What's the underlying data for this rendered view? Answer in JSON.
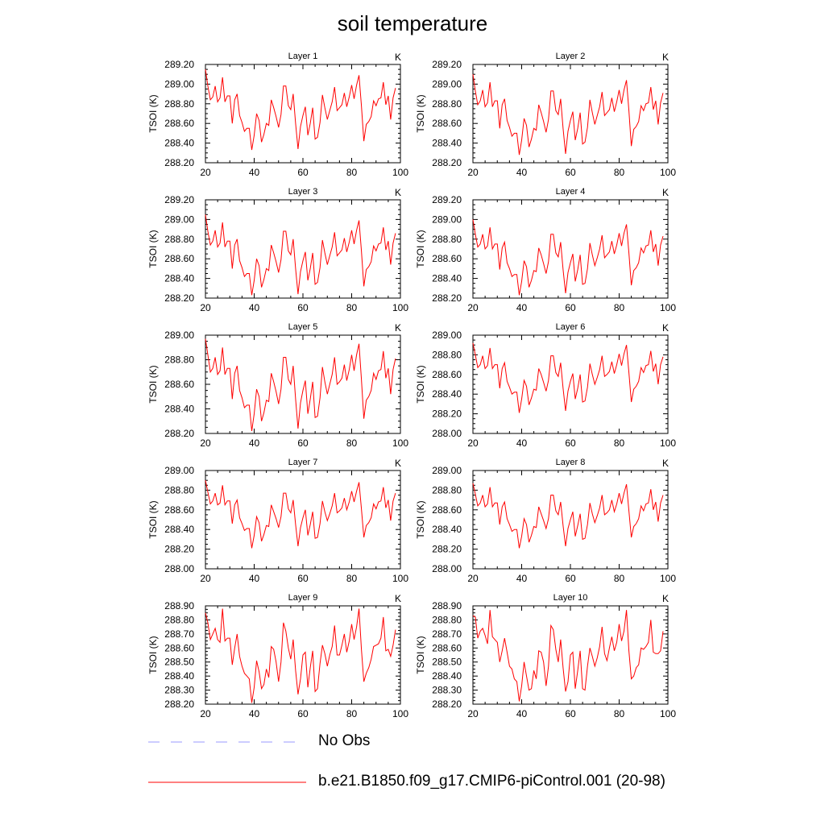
{
  "title": "soil temperature",
  "legend": [
    {
      "label": "No Obs",
      "color": "#9999ff",
      "dash": true
    },
    {
      "label": "b.e21.B1850.f09_g17.CMIP6-piControl.001 (20-98)",
      "color": "#ff0000",
      "dash": false
    }
  ],
  "chart_data": [
    {
      "type": "line",
      "panel_title": "Layer 1",
      "unit_label": "K",
      "ylabel": "TSOI  (K)",
      "xlim": [
        20,
        100
      ],
      "ylim": [
        288.2,
        289.2
      ],
      "yticks": [
        "289.20",
        "289.00",
        "288.80",
        "288.60",
        "288.40",
        "288.20"
      ],
      "xticks": [
        "20",
        "40",
        "60",
        "80",
        "100"
      ],
      "x_start": 20,
      "color": "#ff0000",
      "values": [
        289.15,
        288.98,
        288.84,
        288.87,
        288.98,
        288.82,
        288.86,
        289.07,
        288.82,
        288.88,
        288.88,
        288.6,
        288.84,
        288.9,
        288.68,
        288.61,
        288.52,
        288.55,
        288.55,
        288.33,
        288.48,
        288.7,
        288.63,
        288.41,
        288.49,
        288.6,
        288.58,
        288.84,
        288.76,
        288.67,
        288.56,
        288.69,
        288.98,
        288.98,
        288.78,
        288.74,
        288.9,
        288.6,
        288.34,
        288.57,
        288.68,
        288.77,
        288.48,
        288.6,
        288.76,
        288.44,
        288.46,
        288.61,
        288.89,
        288.76,
        288.64,
        288.73,
        288.82,
        288.97,
        288.73,
        288.76,
        288.79,
        288.91,
        288.77,
        288.87,
        288.99,
        288.85,
        288.99,
        289.09,
        288.78,
        288.42,
        288.59,
        288.62,
        288.67,
        288.83,
        288.78,
        288.85,
        288.86,
        289.02,
        288.79,
        288.88,
        288.64,
        288.86,
        288.96
      ]
    },
    {
      "type": "line",
      "panel_title": "Layer 2",
      "unit_label": "K",
      "ylabel": "TSOI  (K)",
      "xlim": [
        20,
        100
      ],
      "ylim": [
        288.2,
        289.2
      ],
      "yticks": [
        "289.20",
        "289.00",
        "288.80",
        "288.60",
        "288.40",
        "288.20"
      ],
      "xticks": [
        "20",
        "40",
        "60",
        "80",
        "100"
      ],
      "x_start": 20,
      "color": "#ff0000",
      "values": [
        289.1,
        288.93,
        288.79,
        288.83,
        288.94,
        288.77,
        288.81,
        289.02,
        288.77,
        288.83,
        288.83,
        288.55,
        288.79,
        288.85,
        288.63,
        288.56,
        288.47,
        288.5,
        288.5,
        288.28,
        288.43,
        288.65,
        288.58,
        288.36,
        288.44,
        288.55,
        288.53,
        288.79,
        288.71,
        288.62,
        288.51,
        288.64,
        288.93,
        288.93,
        288.73,
        288.69,
        288.85,
        288.55,
        288.29,
        288.52,
        288.63,
        288.72,
        288.43,
        288.55,
        288.71,
        288.39,
        288.41,
        288.56,
        288.84,
        288.71,
        288.59,
        288.68,
        288.77,
        288.92,
        288.68,
        288.71,
        288.74,
        288.86,
        288.72,
        288.82,
        288.94,
        288.8,
        288.94,
        289.04,
        288.73,
        288.37,
        288.54,
        288.57,
        288.62,
        288.78,
        288.73,
        288.8,
        288.81,
        288.97,
        288.74,
        288.83,
        288.59,
        288.81,
        288.91
      ]
    },
    {
      "type": "line",
      "panel_title": "Layer 3",
      "unit_label": "K",
      "ylabel": "TSOI  (K)",
      "xlim": [
        20,
        100
      ],
      "ylim": [
        288.2,
        289.2
      ],
      "yticks": [
        "289.20",
        "289.00",
        "288.80",
        "288.60",
        "288.40",
        "288.20"
      ],
      "xticks": [
        "20",
        "40",
        "60",
        "80",
        "100"
      ],
      "x_start": 20,
      "color": "#ff0000",
      "values": [
        289.05,
        288.88,
        288.74,
        288.78,
        288.89,
        288.72,
        288.76,
        288.97,
        288.72,
        288.78,
        288.78,
        288.5,
        288.74,
        288.8,
        288.58,
        288.51,
        288.42,
        288.45,
        288.45,
        288.23,
        288.38,
        288.6,
        288.53,
        288.31,
        288.39,
        288.5,
        288.48,
        288.74,
        288.66,
        288.57,
        288.46,
        288.59,
        288.88,
        288.88,
        288.68,
        288.64,
        288.8,
        288.5,
        288.24,
        288.47,
        288.58,
        288.67,
        288.38,
        288.5,
        288.66,
        288.34,
        288.36,
        288.51,
        288.79,
        288.66,
        288.54,
        288.63,
        288.72,
        288.87,
        288.63,
        288.66,
        288.69,
        288.81,
        288.67,
        288.77,
        288.89,
        288.75,
        288.89,
        288.99,
        288.68,
        288.32,
        288.49,
        288.52,
        288.57,
        288.73,
        288.68,
        288.75,
        288.76,
        288.92,
        288.69,
        288.78,
        288.54,
        288.76,
        288.86
      ]
    },
    {
      "type": "line",
      "panel_title": "Layer 4",
      "unit_label": "K",
      "ylabel": "TSOI  (K)",
      "xlim": [
        20,
        100
      ],
      "ylim": [
        288.2,
        289.2
      ],
      "yticks": [
        "289.20",
        "289.00",
        "288.80",
        "288.60",
        "288.40",
        "288.20"
      ],
      "xticks": [
        "20",
        "40",
        "60",
        "80",
        "100"
      ],
      "x_start": 20,
      "color": "#ff0000",
      "values": [
        289.0,
        288.85,
        288.72,
        288.75,
        288.85,
        288.7,
        288.73,
        288.92,
        288.7,
        288.75,
        288.75,
        288.49,
        288.71,
        288.77,
        288.56,
        288.5,
        288.42,
        288.44,
        288.44,
        288.23,
        288.37,
        288.58,
        288.52,
        288.31,
        288.38,
        288.48,
        288.47,
        288.71,
        288.64,
        288.55,
        288.45,
        288.57,
        288.85,
        288.85,
        288.66,
        288.62,
        288.77,
        288.49,
        288.25,
        288.46,
        288.56,
        288.65,
        288.37,
        288.49,
        288.64,
        288.34,
        288.35,
        288.5,
        288.76,
        288.64,
        288.53,
        288.61,
        288.7,
        288.84,
        288.61,
        288.64,
        288.67,
        288.78,
        288.65,
        288.74,
        288.86,
        288.73,
        288.86,
        288.95,
        288.66,
        288.33,
        288.48,
        288.51,
        288.56,
        288.71,
        288.66,
        288.73,
        288.74,
        288.89,
        288.67,
        288.75,
        288.53,
        288.74,
        288.83
      ]
    },
    {
      "type": "line",
      "panel_title": "Layer 5",
      "unit_label": "K",
      "ylabel": "TSOI  (K)",
      "xlim": [
        20,
        100
      ],
      "ylim": [
        288.2,
        289.0
      ],
      "yticks": [
        "289.00",
        "288.80",
        "288.60",
        "288.40",
        "288.20"
      ],
      "xticks": [
        "20",
        "40",
        "60",
        "80",
        "100"
      ],
      "x_start": 20,
      "color": "#ff0000",
      "values": [
        288.97,
        288.84,
        288.7,
        288.73,
        288.82,
        288.68,
        288.71,
        288.9,
        288.68,
        288.73,
        288.73,
        288.48,
        288.69,
        288.75,
        288.55,
        288.49,
        288.41,
        288.43,
        288.43,
        288.22,
        288.36,
        288.56,
        288.5,
        288.3,
        288.37,
        288.47,
        288.46,
        288.69,
        288.62,
        288.54,
        288.44,
        288.56,
        288.82,
        288.82,
        288.64,
        288.6,
        288.75,
        288.48,
        288.24,
        288.45,
        288.55,
        288.63,
        288.36,
        288.48,
        288.62,
        288.33,
        288.34,
        288.49,
        288.74,
        288.62,
        288.52,
        288.6,
        288.68,
        288.82,
        288.6,
        288.62,
        288.65,
        288.76,
        288.63,
        288.72,
        288.84,
        288.71,
        288.84,
        288.93,
        288.64,
        288.32,
        288.47,
        288.5,
        288.55,
        288.69,
        288.64,
        288.71,
        288.72,
        288.87,
        288.65,
        288.73,
        288.52,
        288.72,
        288.81
      ]
    },
    {
      "type": "line",
      "panel_title": "Layer 6",
      "unit_label": "K",
      "ylabel": "TSOI  (K)",
      "xlim": [
        20,
        100
      ],
      "ylim": [
        288.0,
        289.0
      ],
      "yticks": [
        "289.00",
        "288.80",
        "288.60",
        "288.40",
        "288.20",
        "288.00"
      ],
      "xticks": [
        "20",
        "40",
        "60",
        "80",
        "100"
      ],
      "x_start": 20,
      "color": "#ff0000",
      "values": [
        288.92,
        288.8,
        288.67,
        288.7,
        288.79,
        288.66,
        288.69,
        288.87,
        288.66,
        288.7,
        288.7,
        288.46,
        288.66,
        288.72,
        288.53,
        288.47,
        288.4,
        288.42,
        288.42,
        288.21,
        288.35,
        288.54,
        288.48,
        288.29,
        288.36,
        288.45,
        288.44,
        288.66,
        288.6,
        288.52,
        288.43,
        288.54,
        288.79,
        288.79,
        288.62,
        288.58,
        288.72,
        288.46,
        288.23,
        288.43,
        288.53,
        288.61,
        288.35,
        288.46,
        288.6,
        288.32,
        288.33,
        288.47,
        288.71,
        288.6,
        288.5,
        288.57,
        288.65,
        288.79,
        288.58,
        288.6,
        288.63,
        288.73,
        288.61,
        288.7,
        288.81,
        288.69,
        288.81,
        288.9,
        288.62,
        288.32,
        288.45,
        288.48,
        288.53,
        288.67,
        288.62,
        288.69,
        288.7,
        288.84,
        288.63,
        288.71,
        288.5,
        288.7,
        288.78
      ]
    },
    {
      "type": "line",
      "panel_title": "Layer 7",
      "unit_label": "K",
      "ylabel": "TSOI  (K)",
      "xlim": [
        20,
        100
      ],
      "ylim": [
        288.0,
        289.0
      ],
      "yticks": [
        "289.00",
        "288.80",
        "288.60",
        "288.40",
        "288.20",
        "288.00"
      ],
      "xticks": [
        "20",
        "40",
        "60",
        "80",
        "100"
      ],
      "x_start": 20,
      "color": "#ff0000",
      "values": [
        288.9,
        288.78,
        288.66,
        288.69,
        288.77,
        288.65,
        288.67,
        288.85,
        288.65,
        288.69,
        288.69,
        288.46,
        288.65,
        288.7,
        288.52,
        288.46,
        288.39,
        288.41,
        288.41,
        288.21,
        288.34,
        288.53,
        288.47,
        288.28,
        288.35,
        288.44,
        288.43,
        288.65,
        288.58,
        288.51,
        288.42,
        288.53,
        288.77,
        288.77,
        288.61,
        288.57,
        288.7,
        288.45,
        288.23,
        288.42,
        288.52,
        288.6,
        288.34,
        288.45,
        288.58,
        288.31,
        288.32,
        288.46,
        288.69,
        288.58,
        288.49,
        288.56,
        288.64,
        288.77,
        288.57,
        288.59,
        288.62,
        288.72,
        288.6,
        288.68,
        288.79,
        288.68,
        288.79,
        288.88,
        288.61,
        288.32,
        288.44,
        288.47,
        288.52,
        288.66,
        288.61,
        288.68,
        288.69,
        288.83,
        288.62,
        288.7,
        288.49,
        288.69,
        288.77
      ]
    },
    {
      "type": "line",
      "panel_title": "Layer 8",
      "unit_label": "K",
      "ylabel": "TSOI  (K)",
      "xlim": [
        20,
        100
      ],
      "ylim": [
        288.0,
        289.0
      ],
      "yticks": [
        "289.00",
        "288.80",
        "288.60",
        "288.40",
        "288.20",
        "288.00"
      ],
      "xticks": [
        "20",
        "40",
        "60",
        "80",
        "100"
      ],
      "x_start": 20,
      "color": "#ff0000",
      "values": [
        288.87,
        288.76,
        288.64,
        288.67,
        288.75,
        288.63,
        288.66,
        288.83,
        288.63,
        288.67,
        288.67,
        288.45,
        288.63,
        288.68,
        288.51,
        288.45,
        288.38,
        288.4,
        288.4,
        288.21,
        288.33,
        288.51,
        288.45,
        288.27,
        288.34,
        288.43,
        288.42,
        288.63,
        288.56,
        288.49,
        288.41,
        288.51,
        288.75,
        288.75,
        288.59,
        288.55,
        288.68,
        288.44,
        288.23,
        288.41,
        288.5,
        288.58,
        288.33,
        288.44,
        288.56,
        288.3,
        288.31,
        288.45,
        288.67,
        288.56,
        288.47,
        288.54,
        288.62,
        288.75,
        288.55,
        288.57,
        288.6,
        288.7,
        288.58,
        288.66,
        288.77,
        288.66,
        288.77,
        288.86,
        288.59,
        288.32,
        288.43,
        288.46,
        288.51,
        288.64,
        288.59,
        288.66,
        288.67,
        288.81,
        288.6,
        288.68,
        288.48,
        288.67,
        288.75
      ]
    },
    {
      "type": "line",
      "panel_title": "Layer 9",
      "unit_label": "K",
      "ylabel": "TSOI  (K)",
      "xlim": [
        20,
        100
      ],
      "ylim": [
        288.2,
        288.9
      ],
      "yticks": [
        "288.90",
        "288.80",
        "288.70",
        "288.60",
        "288.50",
        "288.40",
        "288.30",
        "288.20"
      ],
      "xticks": [
        "20",
        "40",
        "60",
        "80",
        "100"
      ],
      "x_start": 20,
      "color": "#ff0000",
      "values": [
        288.85,
        288.78,
        288.66,
        288.7,
        288.74,
        288.66,
        288.64,
        288.88,
        288.65,
        288.67,
        288.67,
        288.48,
        288.6,
        288.7,
        288.54,
        288.47,
        288.42,
        288.4,
        288.38,
        288.21,
        288.32,
        288.51,
        288.43,
        288.31,
        288.34,
        288.45,
        288.39,
        288.61,
        288.59,
        288.5,
        288.36,
        288.5,
        288.78,
        288.72,
        288.6,
        288.52,
        288.66,
        288.44,
        288.27,
        288.38,
        288.55,
        288.57,
        288.32,
        288.46,
        288.58,
        288.29,
        288.31,
        288.49,
        288.62,
        288.56,
        288.47,
        288.55,
        288.61,
        288.76,
        288.55,
        288.55,
        288.62,
        288.7,
        288.57,
        288.65,
        288.77,
        288.66,
        288.75,
        288.88,
        288.59,
        288.36,
        288.42,
        288.46,
        288.52,
        288.61,
        288.62,
        288.63,
        288.67,
        288.82,
        288.58,
        288.59,
        288.54,
        288.62,
        288.73
      ]
    },
    {
      "type": "line",
      "panel_title": "Layer 10",
      "unit_label": "K",
      "ylabel": "TSOI  (K)",
      "xlim": [
        20,
        100
      ],
      "ylim": [
        288.2,
        288.9
      ],
      "yticks": [
        "288.90",
        "288.80",
        "288.70",
        "288.60",
        "288.50",
        "288.40",
        "288.30",
        "288.20"
      ],
      "xticks": [
        "20",
        "40",
        "60",
        "80",
        "100"
      ],
      "x_start": 20,
      "color": "#ff0000",
      "values": [
        288.83,
        288.82,
        288.67,
        288.72,
        288.74,
        288.69,
        288.63,
        288.87,
        288.68,
        288.66,
        288.64,
        288.5,
        288.58,
        288.67,
        288.57,
        288.47,
        288.45,
        288.38,
        288.36,
        288.22,
        288.33,
        288.5,
        288.4,
        288.3,
        288.31,
        288.44,
        288.38,
        288.58,
        288.57,
        288.5,
        288.33,
        288.47,
        288.76,
        288.73,
        288.59,
        288.5,
        288.66,
        288.46,
        288.29,
        288.36,
        288.55,
        288.57,
        288.31,
        288.44,
        288.58,
        288.31,
        288.3,
        288.47,
        288.6,
        288.54,
        288.47,
        288.53,
        288.61,
        288.75,
        288.56,
        288.51,
        288.6,
        288.68,
        288.58,
        288.64,
        288.77,
        288.65,
        288.72,
        288.87,
        288.58,
        288.38,
        288.4,
        288.46,
        288.48,
        288.6,
        288.59,
        288.61,
        288.64,
        288.8,
        288.57,
        288.56,
        288.56,
        288.58,
        288.72
      ]
    }
  ]
}
